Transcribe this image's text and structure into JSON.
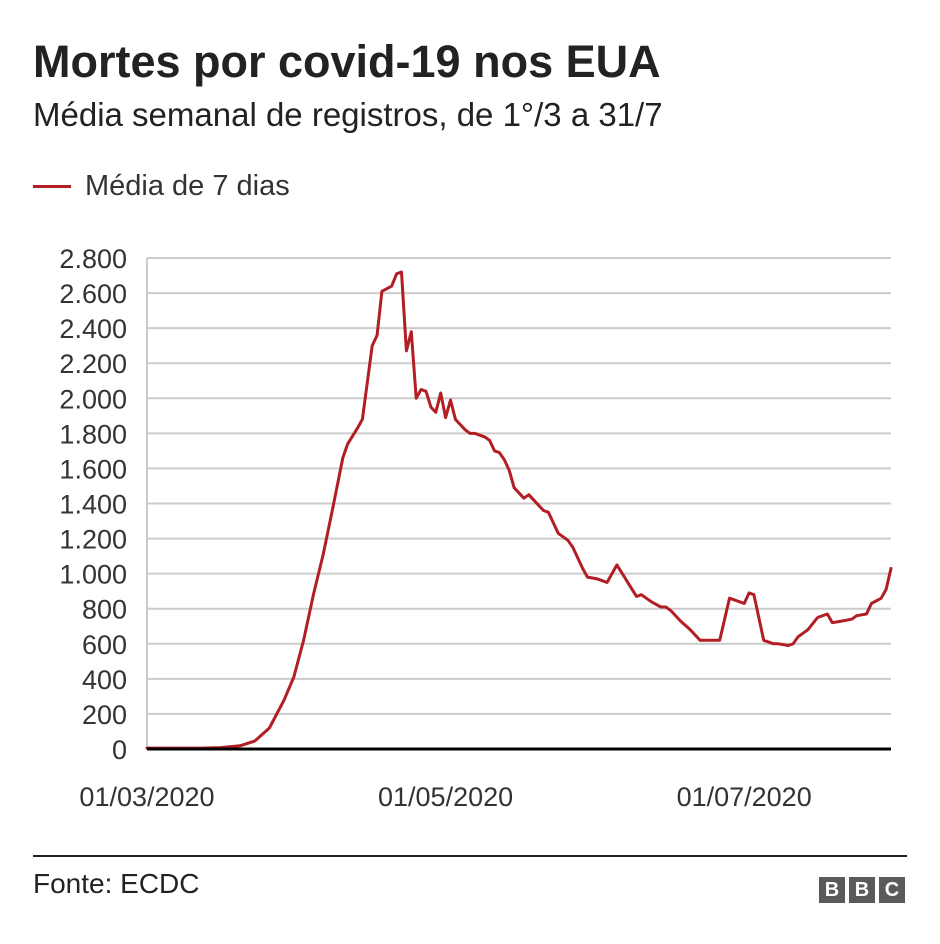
{
  "header": {
    "title": "Mortes por covid-19 nos EUA",
    "subtitle": "Média semanal de registros, de 1°/3 a 31/7"
  },
  "legend": {
    "label": "Média de 7 dias"
  },
  "footer": {
    "source": "Fonte: ECDC",
    "logo_text": "BBC"
  },
  "colors": {
    "line": "#b21e23",
    "grid": "#cccccc",
    "axis": "#000000",
    "logo": "#5a5a5a"
  },
  "chart_data": {
    "type": "line",
    "title": "Mortes por covid-19 nos EUA",
    "subtitle": "Média semanal de registros, de 1°/3 a 31/7",
    "xlabel": "",
    "ylabel": "",
    "x_tick_labels": [
      "01/03/2020",
      "01/05/2020",
      "01/07/2020"
    ],
    "y_tick_labels": [
      "0",
      "200",
      "400",
      "600",
      "800",
      "1.000",
      "1.200",
      "1.400",
      "1.600",
      "1.800",
      "2.000",
      "2.200",
      "2.400",
      "2.600",
      "2.800"
    ],
    "y_ticks": [
      0,
      200,
      400,
      600,
      800,
      1000,
      1200,
      1400,
      1600,
      1800,
      2000,
      2200,
      2400,
      2600,
      2800
    ],
    "ylim": [
      0,
      2800
    ],
    "xlim": [
      "2020-03-01",
      "2020-07-31"
    ],
    "grid": true,
    "legend_position": "top-left",
    "series": [
      {
        "name": "Média de 7 dias",
        "x": [
          "2020-03-01",
          "2020-03-06",
          "2020-03-12",
          "2020-03-16",
          "2020-03-20",
          "2020-03-23",
          "2020-03-26",
          "2020-03-29",
          "2020-03-31",
          "2020-04-02",
          "2020-04-04",
          "2020-04-06",
          "2020-04-08",
          "2020-04-10",
          "2020-04-11",
          "2020-04-13",
          "2020-04-14",
          "2020-04-16",
          "2020-04-17",
          "2020-04-18",
          "2020-04-20",
          "2020-04-21",
          "2020-04-22",
          "2020-04-23",
          "2020-04-24",
          "2020-04-25",
          "2020-04-26",
          "2020-04-27",
          "2020-04-28",
          "2020-04-29",
          "2020-04-30",
          "2020-05-01",
          "2020-05-02",
          "2020-05-03",
          "2020-05-04",
          "2020-05-05",
          "2020-05-06",
          "2020-05-07",
          "2020-05-09",
          "2020-05-10",
          "2020-05-11",
          "2020-05-12",
          "2020-05-13",
          "2020-05-14",
          "2020-05-15",
          "2020-05-17",
          "2020-05-18",
          "2020-05-20",
          "2020-05-21",
          "2020-05-22",
          "2020-05-24",
          "2020-05-26",
          "2020-05-27",
          "2020-05-29",
          "2020-05-30",
          "2020-06-01",
          "2020-06-03",
          "2020-06-05",
          "2020-06-07",
          "2020-06-09",
          "2020-06-10",
          "2020-06-12",
          "2020-06-14",
          "2020-06-15",
          "2020-06-16",
          "2020-06-18",
          "2020-06-20",
          "2020-06-22",
          "2020-06-24",
          "2020-06-26",
          "2020-06-28",
          "2020-06-30",
          "2020-07-01",
          "2020-07-02",
          "2020-07-03",
          "2020-07-05",
          "2020-07-07",
          "2020-07-08",
          "2020-07-10",
          "2020-07-11",
          "2020-07-12",
          "2020-07-14",
          "2020-07-16",
          "2020-07-18",
          "2020-07-19",
          "2020-07-21",
          "2020-07-23",
          "2020-07-24",
          "2020-07-26",
          "2020-07-27",
          "2020-07-29",
          "2020-07-30",
          "2020-07-31"
        ],
        "y": [
          5,
          5,
          5,
          8,
          18,
          45,
          120,
          280,
          410,
          620,
          880,
          1110,
          1380,
          1660,
          1740,
          1830,
          1880,
          2300,
          2360,
          2610,
          2640,
          2710,
          2720,
          2270,
          2380,
          2000,
          2050,
          2040,
          1950,
          1920,
          2030,
          1890,
          1990,
          1880,
          1850,
          1820,
          1800,
          1800,
          1780,
          1760,
          1700,
          1690,
          1650,
          1590,
          1490,
          1430,
          1450,
          1390,
          1360,
          1350,
          1230,
          1190,
          1150,
          1030,
          980,
          970,
          950,
          1050,
          960,
          870,
          880,
          840,
          810,
          810,
          790,
          730,
          680,
          620,
          620,
          620,
          860,
          840,
          830,
          890,
          880,
          620,
          600,
          600,
          590,
          600,
          640,
          680,
          750,
          770,
          720,
          730,
          740,
          760,
          770,
          830,
          860,
          910,
          1030
        ]
      }
    ]
  }
}
